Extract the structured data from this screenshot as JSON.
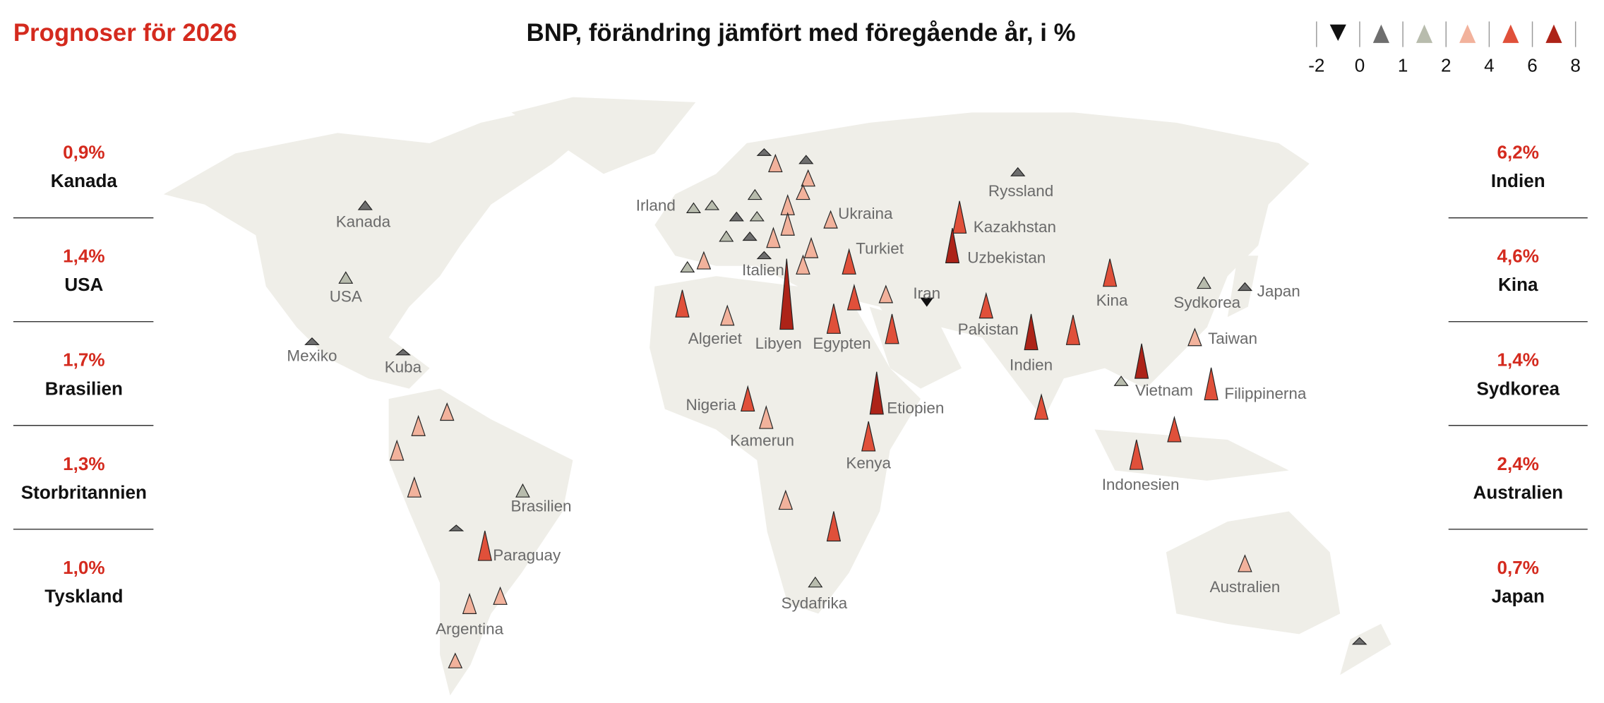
{
  "header": {
    "title": "Prognoser för 2026",
    "subtitle": "BNP, förändring jämfört med föregående år, i %"
  },
  "legend": {
    "ticks": [
      -2,
      0,
      1,
      2,
      4,
      6,
      8
    ],
    "colors": [
      "#111111",
      "#6e6e6e",
      "#b8bcad",
      "#f2b29c",
      "#e0503a",
      "#ad2318"
    ]
  },
  "left_panel": [
    {
      "value_label": "0,9%",
      "name": "Kanada"
    },
    {
      "value_label": "1,4%",
      "name": "USA"
    },
    {
      "value_label": "1,7%",
      "name": "Brasilien"
    },
    {
      "value_label": "1,3%",
      "name": "Storbritannien"
    },
    {
      "value_label": "1,0%",
      "name": "Tyskland"
    }
  ],
  "right_panel": [
    {
      "value_label": "6,2%",
      "name": "Indien"
    },
    {
      "value_label": "4,6%",
      "name": "Kina"
    },
    {
      "value_label": "1,4%",
      "name": "Sydkorea"
    },
    {
      "value_label": "2,4%",
      "name": "Australien"
    },
    {
      "value_label": "0,7%",
      "name": "Japan"
    }
  ],
  "markers": [
    {
      "label": "Kanada",
      "value": 0.9
    },
    {
      "label": "USA",
      "value": 1.4
    },
    {
      "label": "Mexiko",
      "value": 0.5
    },
    {
      "label": "Kuba",
      "value": 0.3
    },
    {
      "label": "Brasilien",
      "value": 1.7
    },
    {
      "label": "Paraguay",
      "value": 5
    },
    {
      "label": "Argentina",
      "value": 3
    },
    {
      "label": "Irland",
      "value": 1.1
    },
    {
      "label": "Ukraina",
      "value": 2.5
    },
    {
      "label": "Turkiet",
      "value": 4
    },
    {
      "label": "Italien",
      "value": 0.6
    },
    {
      "label": "Algeriet",
      "value": 3
    },
    {
      "label": "Libyen",
      "value": 13
    },
    {
      "label": "Egypten",
      "value": 5
    },
    {
      "label": "Iran",
      "value": -1
    },
    {
      "label": "Nigeria",
      "value": 4
    },
    {
      "label": "Kamerun",
      "value": 3.5
    },
    {
      "label": "Etiopien",
      "value": 7.5
    },
    {
      "label": "Kenya",
      "value": 5
    },
    {
      "label": "Sydafrika",
      "value": 1.1
    },
    {
      "label": "Ryssland",
      "value": 0.8
    },
    {
      "label": "Kazakhstan",
      "value": 5.5
    },
    {
      "label": "Uzbekistan",
      "value": 6
    },
    {
      "label": "Pakistan",
      "value": 4
    },
    {
      "label": "Indien",
      "value": 6.2
    },
    {
      "label": "Kina",
      "value": 4.6
    },
    {
      "label": "Sydkorea",
      "value": 1.4
    },
    {
      "label": "Japan",
      "value": 0.7
    },
    {
      "label": "Taiwan",
      "value": 2.5
    },
    {
      "label": "Vietnam",
      "value": 6
    },
    {
      "label": "Filippinerna",
      "value": 5.5
    },
    {
      "label": "Indonesien",
      "value": 5
    },
    {
      "label": "Australien",
      "value": 2.4
    },
    {
      "label": null,
      "value": 0.5
    },
    {
      "label": null,
      "value": 2.5
    },
    {
      "label": null,
      "value": 0.8
    },
    {
      "label": null,
      "value": 2.3
    },
    {
      "label": null,
      "value": 1.1
    },
    {
      "label": null,
      "value": 3
    },
    {
      "label": null,
      "value": 1
    },
    {
      "label": null,
      "value": 2
    },
    {
      "label": null,
      "value": 0.9
    },
    {
      "label": null,
      "value": 1
    },
    {
      "label": null,
      "value": 1.2
    },
    {
      "label": null,
      "value": 0.8
    },
    {
      "label": null,
      "value": 3
    },
    {
      "label": null,
      "value": 3.5
    },
    {
      "label": null,
      "value": 3
    },
    {
      "label": null,
      "value": 2.8
    },
    {
      "label": null,
      "value": 1.2
    },
    {
      "label": null,
      "value": 2.5
    },
    {
      "label": null,
      "value": 4.5
    },
    {
      "label": null,
      "value": 4
    },
    {
      "label": null,
      "value": 2.5
    },
    {
      "label": null,
      "value": 5
    },
    {
      "label": null,
      "value": 5
    },
    {
      "label": null,
      "value": 4
    },
    {
      "label": null,
      "value": 1
    },
    {
      "label": null,
      "value": 4
    },
    {
      "label": null,
      "value": 3
    },
    {
      "label": null,
      "value": 2.5
    },
    {
      "label": null,
      "value": 3
    },
    {
      "label": null,
      "value": 3
    },
    {
      "label": null,
      "value": 0.3
    },
    {
      "label": null,
      "value": 2.5
    },
    {
      "label": null,
      "value": 2
    },
    {
      "label": null,
      "value": 2.8
    },
    {
      "label": null,
      "value": 5
    },
    {
      "label": null,
      "value": 0.5
    }
  ]
}
